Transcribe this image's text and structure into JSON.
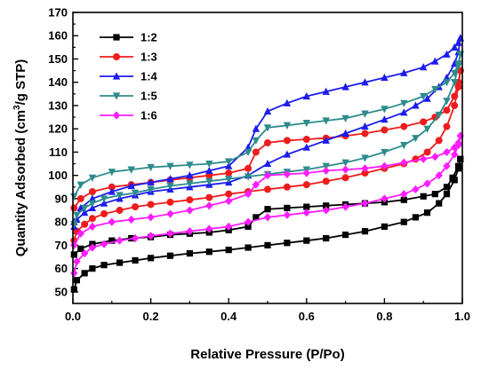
{
  "chart_data": {
    "type": "line",
    "xlabel": "Relative Pressure (P/Po)",
    "ylabel_main": "Quantity Adsorbed (cm",
    "ylabel_sup": "3",
    "ylabel_tail": "/g STP)",
    "xlim": [
      0.0,
      1.0
    ],
    "ylim": [
      45,
      170
    ],
    "xticks": [
      0.0,
      0.2,
      0.4,
      0.6,
      0.8,
      1.0
    ],
    "xtick_labels": [
      "0.0",
      "0.2",
      "0.4",
      "0.6",
      "0.8",
      "1.0"
    ],
    "yticks": [
      50,
      60,
      70,
      80,
      90,
      100,
      110,
      120,
      130,
      140,
      150,
      160,
      170
    ],
    "ytick_labels": [
      "50",
      "60",
      "70",
      "80",
      "90",
      "100",
      "110",
      "120",
      "130",
      "140",
      "150",
      "160",
      "170"
    ],
    "legend_position": "top-left",
    "series": [
      {
        "name": "1:2",
        "color": "#000000",
        "marker": "square",
        "adsorption": [
          [
            0.003,
            51
          ],
          [
            0.01,
            55
          ],
          [
            0.03,
            58
          ],
          [
            0.05,
            60
          ],
          [
            0.08,
            61.5
          ],
          [
            0.12,
            62.5
          ],
          [
            0.16,
            63.5
          ],
          [
            0.2,
            64.5
          ],
          [
            0.25,
            65.5
          ],
          [
            0.3,
            66.5
          ],
          [
            0.35,
            67.2
          ],
          [
            0.4,
            68
          ],
          [
            0.45,
            69
          ],
          [
            0.5,
            70
          ],
          [
            0.55,
            71
          ],
          [
            0.6,
            72
          ],
          [
            0.65,
            73
          ],
          [
            0.7,
            74.5
          ],
          [
            0.75,
            76
          ],
          [
            0.8,
            78
          ],
          [
            0.85,
            80
          ],
          [
            0.88,
            82
          ],
          [
            0.91,
            84
          ],
          [
            0.94,
            88
          ],
          [
            0.96,
            92
          ],
          [
            0.98,
            98
          ],
          [
            0.99,
            103
          ],
          [
            0.995,
            107
          ]
        ],
        "desorption": [
          [
            0.995,
            107
          ],
          [
            0.99,
            104
          ],
          [
            0.975,
            99
          ],
          [
            0.96,
            95
          ],
          [
            0.93,
            92
          ],
          [
            0.9,
            91
          ],
          [
            0.85,
            89.5
          ],
          [
            0.8,
            88.5
          ],
          [
            0.75,
            88
          ],
          [
            0.7,
            87.5
          ],
          [
            0.65,
            87
          ],
          [
            0.6,
            86.5
          ],
          [
            0.55,
            86
          ],
          [
            0.5,
            85.5
          ],
          [
            0.47,
            82
          ],
          [
            0.45,
            78
          ],
          [
            0.4,
            76.5
          ],
          [
            0.35,
            75.5
          ],
          [
            0.3,
            75
          ],
          [
            0.25,
            74.5
          ],
          [
            0.2,
            73.5
          ],
          [
            0.15,
            73
          ],
          [
            0.1,
            72
          ],
          [
            0.05,
            70.5
          ],
          [
            0.02,
            68.5
          ],
          [
            0.003,
            66
          ]
        ]
      },
      {
        "name": "1:3",
        "color": "#ee1c1c",
        "marker": "circle",
        "adsorption": [
          [
            0.003,
            72
          ],
          [
            0.01,
            76
          ],
          [
            0.03,
            79
          ],
          [
            0.05,
            81.5
          ],
          [
            0.08,
            83.5
          ],
          [
            0.12,
            85
          ],
          [
            0.16,
            86.5
          ],
          [
            0.2,
            87.5
          ],
          [
            0.25,
            88.5
          ],
          [
            0.3,
            89.5
          ],
          [
            0.35,
            90.5
          ],
          [
            0.4,
            92
          ],
          [
            0.45,
            93
          ],
          [
            0.5,
            94
          ],
          [
            0.55,
            95
          ],
          [
            0.6,
            96
          ],
          [
            0.65,
            97.5
          ],
          [
            0.7,
            99
          ],
          [
            0.75,
            101
          ],
          [
            0.8,
            103
          ],
          [
            0.85,
            105
          ],
          [
            0.88,
            107
          ],
          [
            0.91,
            110
          ],
          [
            0.94,
            115
          ],
          [
            0.96,
            121
          ],
          [
            0.98,
            130
          ],
          [
            0.99,
            138
          ],
          [
            0.995,
            145
          ]
        ],
        "desorption": [
          [
            0.995,
            145
          ],
          [
            0.99,
            140
          ],
          [
            0.98,
            134
          ],
          [
            0.96,
            128
          ],
          [
            0.93,
            125
          ],
          [
            0.9,
            123
          ],
          [
            0.85,
            121
          ],
          [
            0.8,
            119.5
          ],
          [
            0.75,
            118
          ],
          [
            0.7,
            117
          ],
          [
            0.65,
            116
          ],
          [
            0.6,
            115.5
          ],
          [
            0.55,
            115
          ],
          [
            0.5,
            114
          ],
          [
            0.47,
            110
          ],
          [
            0.45,
            103
          ],
          [
            0.4,
            101
          ],
          [
            0.35,
            100
          ],
          [
            0.3,
            99
          ],
          [
            0.25,
            98
          ],
          [
            0.2,
            97
          ],
          [
            0.15,
            96
          ],
          [
            0.1,
            95
          ],
          [
            0.05,
            93
          ],
          [
            0.02,
            90
          ],
          [
            0.003,
            86
          ]
        ]
      },
      {
        "name": "1:4",
        "color": "#1c1cee",
        "marker": "triangle-up",
        "adsorption": [
          [
            0.003,
            78
          ],
          [
            0.01,
            81
          ],
          [
            0.03,
            84
          ],
          [
            0.05,
            86
          ],
          [
            0.08,
            88
          ],
          [
            0.12,
            90
          ],
          [
            0.16,
            91.5
          ],
          [
            0.2,
            93
          ],
          [
            0.25,
            94
          ],
          [
            0.3,
            95
          ],
          [
            0.35,
            96
          ],
          [
            0.4,
            97
          ],
          [
            0.45,
            100
          ],
          [
            0.5,
            105
          ],
          [
            0.55,
            109
          ],
          [
            0.6,
            112
          ],
          [
            0.65,
            115
          ],
          [
            0.7,
            118
          ],
          [
            0.75,
            121
          ],
          [
            0.8,
            124
          ],
          [
            0.85,
            127
          ],
          [
            0.88,
            130
          ],
          [
            0.91,
            133
          ],
          [
            0.94,
            138
          ],
          [
            0.96,
            142
          ],
          [
            0.98,
            148
          ],
          [
            0.99,
            153
          ],
          [
            0.995,
            159
          ]
        ],
        "desorption": [
          [
            0.995,
            159
          ],
          [
            0.99,
            157
          ],
          [
            0.98,
            155
          ],
          [
            0.96,
            152
          ],
          [
            0.93,
            149
          ],
          [
            0.9,
            146.5
          ],
          [
            0.85,
            144
          ],
          [
            0.8,
            142
          ],
          [
            0.75,
            140
          ],
          [
            0.7,
            138
          ],
          [
            0.65,
            136
          ],
          [
            0.6,
            134
          ],
          [
            0.55,
            131
          ],
          [
            0.5,
            127.5
          ],
          [
            0.47,
            120
          ],
          [
            0.45,
            112
          ],
          [
            0.4,
            104
          ],
          [
            0.35,
            102
          ],
          [
            0.3,
            100
          ],
          [
            0.25,
            98.5
          ],
          [
            0.2,
            97
          ],
          [
            0.15,
            95.5
          ],
          [
            0.1,
            93
          ],
          [
            0.05,
            90
          ],
          [
            0.02,
            86
          ],
          [
            0.003,
            80
          ]
        ]
      },
      {
        "name": "1:5",
        "color": "#2e8b8b",
        "marker": "triangle-down",
        "adsorption": [
          [
            0.003,
            79
          ],
          [
            0.01,
            83
          ],
          [
            0.03,
            86
          ],
          [
            0.05,
            88
          ],
          [
            0.08,
            90
          ],
          [
            0.12,
            91.5
          ],
          [
            0.16,
            92.5
          ],
          [
            0.2,
            94
          ],
          [
            0.25,
            95.5
          ],
          [
            0.3,
            96.5
          ],
          [
            0.35,
            97.5
          ],
          [
            0.4,
            98.5
          ],
          [
            0.45,
            99.5
          ],
          [
            0.5,
            100.5
          ],
          [
            0.55,
            101.5
          ],
          [
            0.6,
            102.5
          ],
          [
            0.65,
            104
          ],
          [
            0.7,
            105.5
          ],
          [
            0.75,
            107.5
          ],
          [
            0.8,
            110
          ],
          [
            0.85,
            113
          ],
          [
            0.88,
            116
          ],
          [
            0.91,
            120
          ],
          [
            0.94,
            126
          ],
          [
            0.96,
            132
          ],
          [
            0.98,
            140
          ],
          [
            0.99,
            147
          ],
          [
            0.995,
            152
          ]
        ],
        "desorption": [
          [
            0.995,
            152
          ],
          [
            0.99,
            148
          ],
          [
            0.98,
            144
          ],
          [
            0.96,
            140
          ],
          [
            0.93,
            137
          ],
          [
            0.9,
            134
          ],
          [
            0.85,
            131
          ],
          [
            0.8,
            128.5
          ],
          [
            0.75,
            126.5
          ],
          [
            0.7,
            124.5
          ],
          [
            0.65,
            123.5
          ],
          [
            0.6,
            122.5
          ],
          [
            0.55,
            121.5
          ],
          [
            0.5,
            120.5
          ],
          [
            0.47,
            115
          ],
          [
            0.45,
            110
          ],
          [
            0.4,
            106
          ],
          [
            0.35,
            105
          ],
          [
            0.3,
            104.5
          ],
          [
            0.25,
            104
          ],
          [
            0.2,
            103.5
          ],
          [
            0.15,
            102.5
          ],
          [
            0.1,
            101.5
          ],
          [
            0.05,
            99
          ],
          [
            0.02,
            96
          ],
          [
            0.003,
            91
          ]
        ]
      },
      {
        "name": "1:6",
        "color": "#ff1cff",
        "marker": "diamond",
        "adsorption": [
          [
            0.003,
            58
          ],
          [
            0.01,
            63
          ],
          [
            0.03,
            66.5
          ],
          [
            0.05,
            69
          ],
          [
            0.08,
            70.5
          ],
          [
            0.12,
            72
          ],
          [
            0.16,
            73
          ],
          [
            0.2,
            74
          ],
          [
            0.25,
            75
          ],
          [
            0.3,
            76
          ],
          [
            0.35,
            77
          ],
          [
            0.4,
            78
          ],
          [
            0.45,
            80
          ],
          [
            0.5,
            82
          ],
          [
            0.55,
            83
          ],
          [
            0.6,
            84
          ],
          [
            0.65,
            85
          ],
          [
            0.7,
            86.5
          ],
          [
            0.75,
            88
          ],
          [
            0.8,
            90
          ],
          [
            0.85,
            92
          ],
          [
            0.88,
            94
          ],
          [
            0.91,
            96.5
          ],
          [
            0.94,
            100
          ],
          [
            0.96,
            104
          ],
          [
            0.98,
            109
          ],
          [
            0.99,
            113
          ],
          [
            0.995,
            117
          ]
        ],
        "desorption": [
          [
            0.995,
            117
          ],
          [
            0.99,
            114
          ],
          [
            0.98,
            112
          ],
          [
            0.96,
            110
          ],
          [
            0.93,
            108
          ],
          [
            0.9,
            107
          ],
          [
            0.85,
            105.5
          ],
          [
            0.8,
            104
          ],
          [
            0.75,
            103
          ],
          [
            0.7,
            102.5
          ],
          [
            0.65,
            102
          ],
          [
            0.6,
            101
          ],
          [
            0.55,
            100.5
          ],
          [
            0.5,
            100
          ],
          [
            0.47,
            96
          ],
          [
            0.45,
            92
          ],
          [
            0.4,
            89
          ],
          [
            0.35,
            87
          ],
          [
            0.3,
            85
          ],
          [
            0.25,
            83.5
          ],
          [
            0.2,
            82
          ],
          [
            0.15,
            81
          ],
          [
            0.1,
            80
          ],
          [
            0.05,
            78
          ],
          [
            0.02,
            75
          ],
          [
            0.003,
            70
          ]
        ]
      }
    ]
  }
}
